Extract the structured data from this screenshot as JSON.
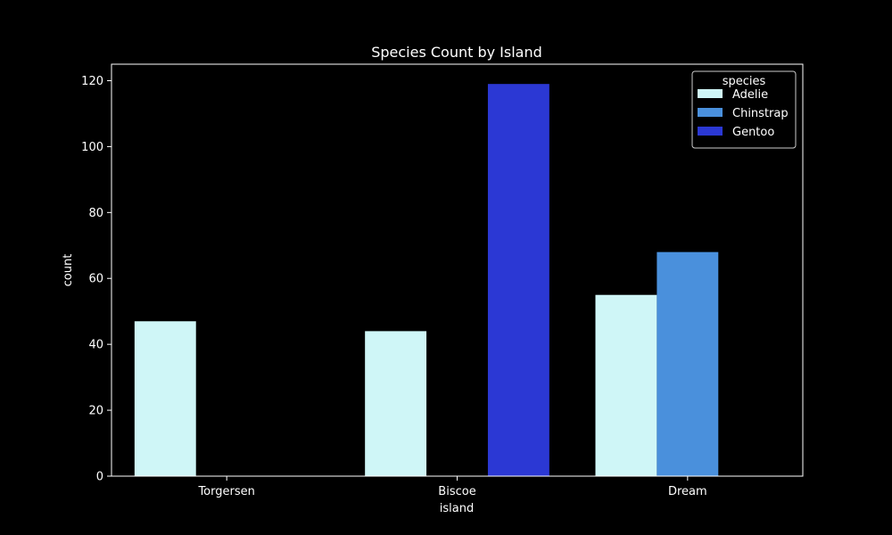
{
  "chart_data": {
    "type": "bar",
    "title": "Species Count by Island",
    "xlabel": "island",
    "ylabel": "count",
    "categories": [
      "Torgersen",
      "Biscoe",
      "Dream"
    ],
    "series": [
      {
        "name": "Adelie",
        "values": [
          47,
          44,
          55
        ],
        "color": "#cff6f7"
      },
      {
        "name": "Chinstrap",
        "values": [
          0,
          0,
          68
        ],
        "color": "#4a90dc"
      },
      {
        "name": "Gentoo",
        "values": [
          0,
          119,
          0
        ],
        "color": "#2b38d4"
      }
    ],
    "ylim": [
      0,
      125
    ],
    "yticks": [
      0,
      20,
      40,
      60,
      80,
      100,
      120
    ],
    "legend": {
      "title": "species",
      "position": "top-right"
    },
    "grid": false,
    "axis_color": "#ffffff",
    "background": "#000000"
  }
}
